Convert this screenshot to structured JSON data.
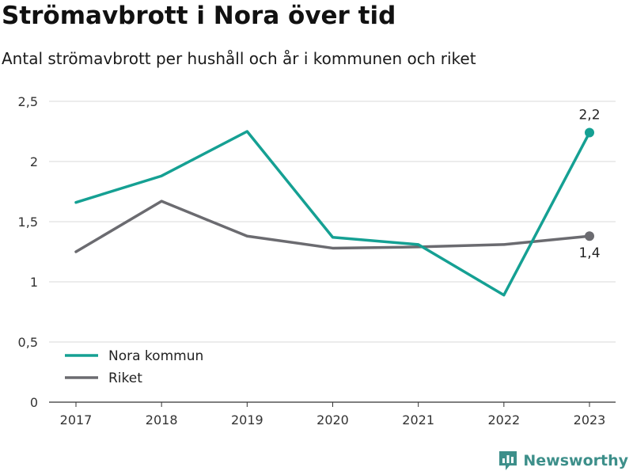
{
  "header": {
    "title": "Strömavbrott i Nora över tid",
    "subtitle": "Antal strömavbrott per hushåll och år i kommunen och riket"
  },
  "brand": {
    "name": "Newsworthy",
    "icon": "newsworthy-logo-icon",
    "color": "#3d8f8a"
  },
  "chart_data": {
    "type": "line",
    "x": [
      "2017",
      "2018",
      "2019",
      "2020",
      "2021",
      "2022",
      "2023"
    ],
    "y_ticks": [
      0,
      0.5,
      1,
      1.5,
      2,
      2.5
    ],
    "y_tick_labels": [
      "0",
      "0,5",
      "1",
      "1,5",
      "2",
      "2,5"
    ],
    "ylim": [
      0,
      2.5
    ],
    "grid": true,
    "legend_position": "bottom-left",
    "series": [
      {
        "name": "Nora kommun",
        "color": "#15a093",
        "values": [
          1.66,
          1.88,
          2.25,
          1.37,
          1.31,
          0.89,
          2.24
        ],
        "end_label": "2,2"
      },
      {
        "name": "Riket",
        "color": "#6b6b70",
        "values": [
          1.25,
          1.67,
          1.38,
          1.28,
          1.29,
          1.31,
          1.38
        ],
        "end_label": "1,4"
      }
    ]
  }
}
